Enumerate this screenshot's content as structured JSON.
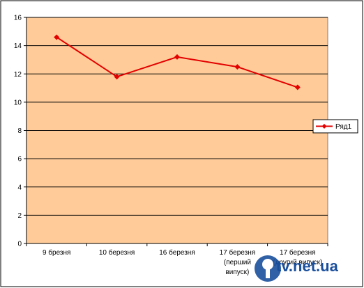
{
  "chart_data": {
    "type": "line",
    "categories": [
      [
        "9 брезня"
      ],
      [
        "10 березня"
      ],
      [
        "16 березня"
      ],
      [
        "17 березня",
        "(перший",
        "випуск)"
      ],
      [
        "17 березня",
        "(другий випуск)"
      ]
    ],
    "series": [
      {
        "name": "Ряд1",
        "values": [
          14.6,
          11.8,
          13.2,
          12.5,
          11.05
        ],
        "color": "#e30000"
      }
    ],
    "ylim": [
      0,
      16
    ],
    "yticks": [
      0,
      2,
      4,
      6,
      8,
      10,
      12,
      14,
      16
    ],
    "grid": true,
    "legend_position": "right",
    "plot_background": "#ffcc99"
  },
  "watermark": {
    "text": "tv.net.ua"
  }
}
